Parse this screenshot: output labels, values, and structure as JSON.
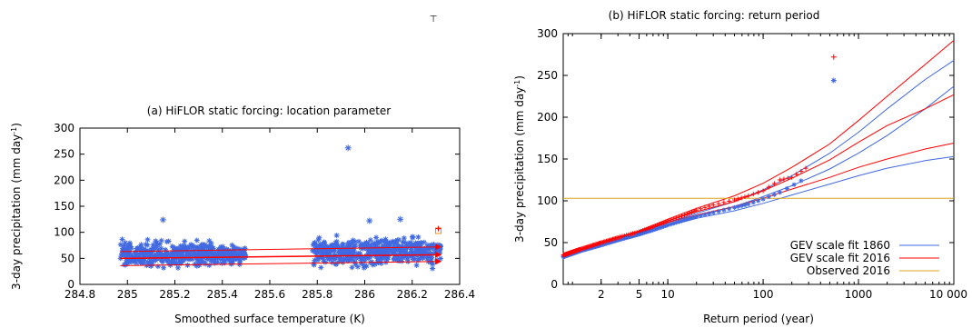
{
  "chart_data": [
    {
      "type": "scatter",
      "title": "(a) HiFLOR static forcing: location parameter",
      "xlabel": "Smoothed surface temperature (K)",
      "ylabel": "3-day precipitation (mm day",
      "ylabel_sup": "-1",
      "ylabel_close": ")",
      "xlim": [
        284.8,
        286.4
      ],
      "ylim": [
        0,
        300
      ],
      "xticks": [
        284.8,
        285,
        285.2,
        285.4,
        285.6,
        285.8,
        286,
        286.2,
        286.4
      ],
      "xtick_labels": [
        "284.8",
        "285",
        "285.2",
        "285.4",
        "285.6",
        "285.8",
        "286",
        "286.2",
        "286.4"
      ],
      "yticks": [
        0,
        50,
        100,
        150,
        200,
        250,
        300
      ],
      "ytick_labels": [
        "0",
        "50",
        "100",
        "150",
        "200",
        "250",
        "300"
      ],
      "grid": false,
      "colors": {
        "points": "#4169e1",
        "fit": "#ff0000",
        "obs": "#ff8c00"
      },
      "fit_lines": [
        {
          "x": [
            284.97,
            286.32
          ],
          "y": [
            50,
            57
          ]
        },
        {
          "x": [
            284.97,
            286.32
          ],
          "y": [
            63,
            72
          ]
        },
        {
          "x": [
            284.97,
            286.32
          ],
          "y": [
            36,
            44
          ]
        }
      ],
      "observed_point": {
        "x": 286.31,
        "y": 103
      },
      "observed_top_marker": {
        "x": 286.31,
        "y": 107
      },
      "highlight_points": [
        {
          "x": 285.93,
          "y": 262
        },
        {
          "x": 285.15,
          "y": 124
        },
        {
          "x": 286.02,
          "y": 122
        },
        {
          "x": 286.15,
          "y": 125
        }
      ],
      "clusters": [
        {
          "x": [
            284.97,
            285.35
          ],
          "ymid": 58,
          "spread": 20
        },
        {
          "x": [
            285.35,
            285.5
          ],
          "ymid": 56,
          "spread": 15
        },
        {
          "x": [
            285.78,
            286.32
          ],
          "ymid": 62,
          "spread": 22
        }
      ]
    },
    {
      "type": "scatter",
      "title": "(b) HiFLOR static forcing: return period",
      "xlabel": "Return period (year)",
      "ylabel": "3-day precipitation (mm day",
      "ylabel_sup": "-1",
      "ylabel_close": ")",
      "xscale": "log",
      "xlim": [
        0.8,
        10000
      ],
      "ylim": [
        0,
        300
      ],
      "xticks": [
        2,
        5,
        10,
        100,
        1000,
        10000
      ],
      "xtick_labels": [
        "2",
        "5",
        "10",
        "100",
        "1000",
        "10 000"
      ],
      "yticks": [
        0,
        50,
        100,
        150,
        200,
        250,
        300
      ],
      "ytick_labels": [
        "0",
        "50",
        "100",
        "150",
        "200",
        "250",
        "300"
      ],
      "grid": false,
      "legend_position": "bottom-right",
      "series": [
        {
          "name": "GEV scale fit 1860",
          "color": "#4169e1",
          "central": {
            "x": [
              0.8,
              2,
              5,
              10,
              20,
              50,
              100,
              200,
              500,
              1000,
              2000,
              5000,
              10000
            ],
            "y": [
              33,
              47,
              60,
              72,
              82,
              93,
              105,
              118,
              138,
              157,
              178,
              210,
              237
            ]
          },
          "upper": {
            "x": [
              0.8,
              2,
              5,
              10,
              20,
              50,
              100,
              200,
              500,
              1000,
              2000,
              5000,
              10000
            ],
            "y": [
              33,
              48,
              61,
              74,
              85,
              99,
              113,
              130,
              157,
              182,
              210,
              245,
              268
            ]
          },
          "lower": {
            "x": [
              0.8,
              2,
              5,
              10,
              20,
              50,
              100,
              200,
              500,
              1000,
              2000,
              5000,
              10000
            ],
            "y": [
              33,
              46,
              58,
              70,
              79,
              88,
              97,
              107,
              120,
              130,
              139,
              148,
              153
            ]
          },
          "points": {
            "x": [
              0.8,
              1.2,
              2,
              3,
              5,
              7,
              10,
              15,
              20,
              30,
              50,
              70,
              100,
              150,
              250
            ],
            "y": [
              33,
              40,
              47,
              53,
              60,
              65,
              71,
              77,
              81,
              86,
              92,
              96,
              102,
              110,
              124
            ]
          },
          "outlier": {
            "x": 550,
            "y": 244
          }
        },
        {
          "name": "GEV scale fit 2016",
          "color": "#ff0000",
          "central": {
            "x": [
              0.8,
              2,
              5,
              10,
              20,
              50,
              100,
              200,
              500,
              1000,
              2000,
              5000,
              10000
            ],
            "y": [
              35,
              50,
              63,
              76,
              87,
              99,
              112,
              127,
              149,
              170,
              190,
              210,
              227
            ]
          },
          "upper": {
            "x": [
              0.8,
              2,
              5,
              10,
              20,
              50,
              100,
              200,
              500,
              1000,
              2000,
              5000,
              10000
            ],
            "y": [
              35,
              51,
              64,
              78,
              91,
              106,
              121,
              140,
              168,
              196,
              225,
              263,
              292
            ]
          },
          "lower": {
            "x": [
              0.8,
              2,
              5,
              10,
              20,
              50,
              100,
              200,
              500,
              1000,
              2000,
              5000,
              10000
            ],
            "y": [
              35,
              50,
              62,
              74,
              83,
              93,
              103,
              114,
              128,
              140,
              150,
              162,
              169
            ]
          },
          "points": {
            "x": [
              0.8,
              1.2,
              2,
              3,
              5,
              7,
              10,
              15,
              20,
              30,
              50,
              70,
              100,
              150,
              200,
              280
            ],
            "y": [
              35,
              42,
              50,
              56,
              63,
              69,
              76,
              83,
              89,
              95,
              101,
              106,
              112,
              125,
              128,
              139
            ]
          },
          "outlier": {
            "x": 550,
            "y": 272
          }
        },
        {
          "name": "Observed 2016",
          "color": "#daa520",
          "hline_y": 103
        }
      ]
    }
  ]
}
